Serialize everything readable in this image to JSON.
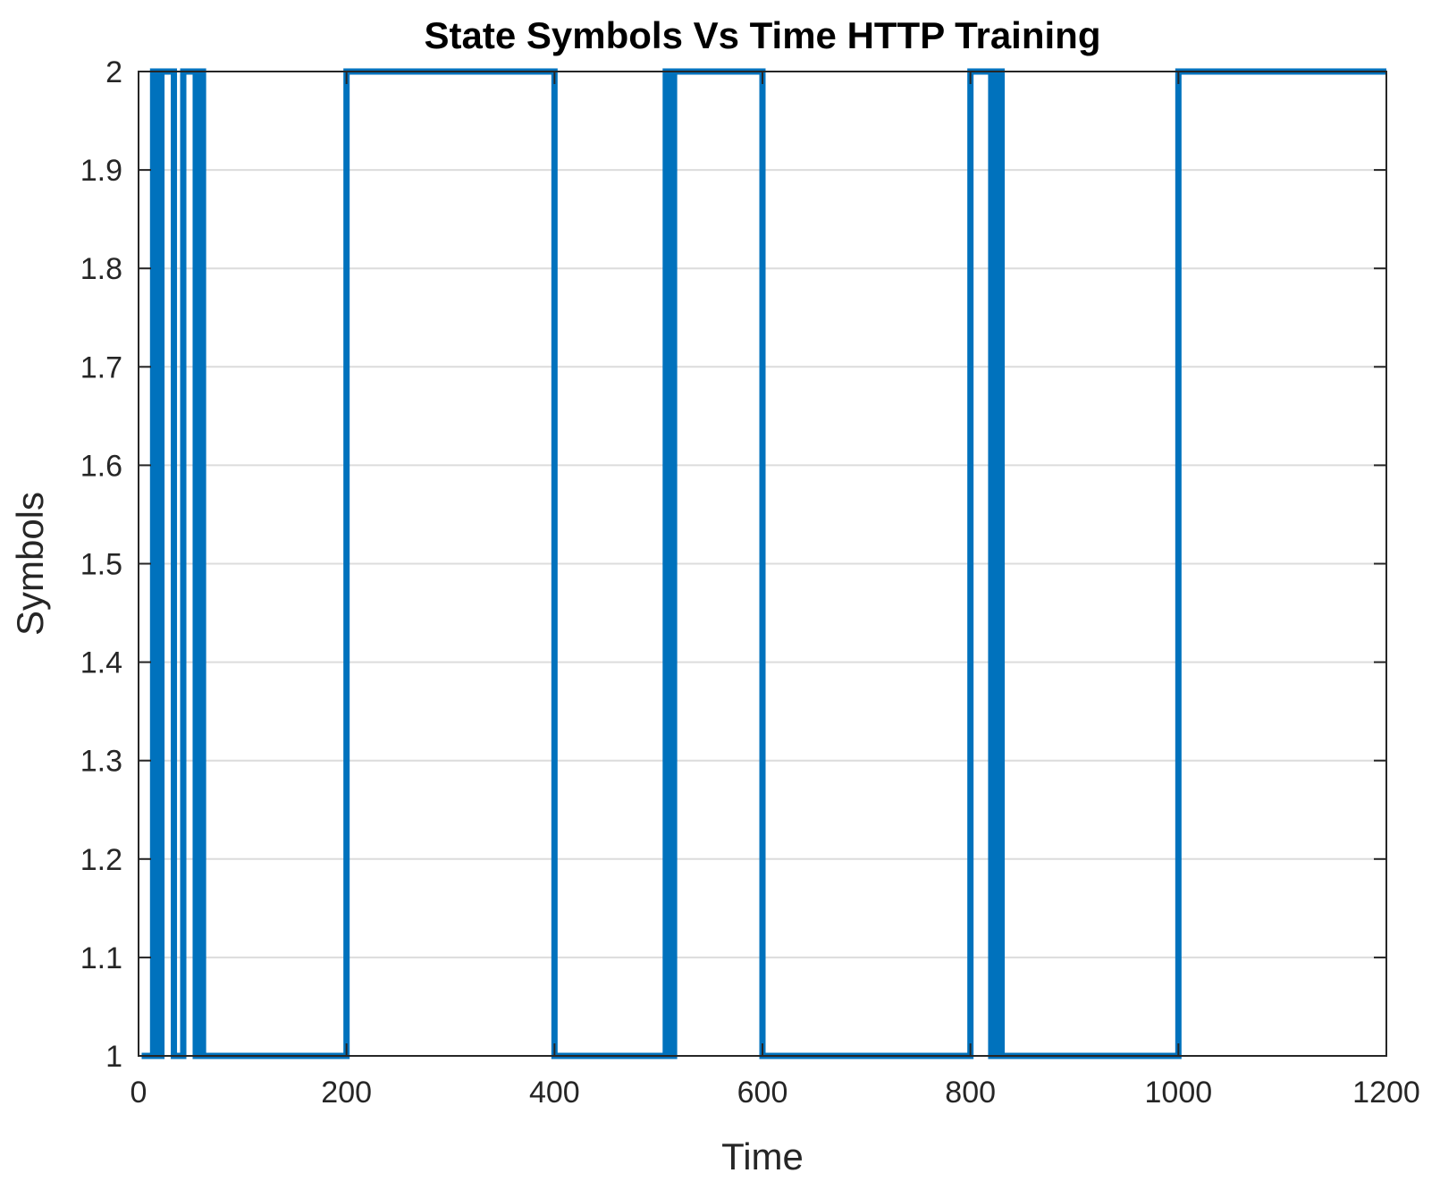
{
  "chart_data": {
    "type": "line",
    "title": "State Symbols Vs Time HTTP Training",
    "xlabel": "Time",
    "ylabel": "Symbols",
    "xlim": [
      0,
      1200
    ],
    "ylim": [
      1,
      2
    ],
    "xticks": [
      "0",
      "200",
      "400",
      "600",
      "800",
      "1000",
      "1200"
    ],
    "yticks": [
      "1",
      "1.1",
      "1.2",
      "1.3",
      "1.4",
      "1.5",
      "1.6",
      "1.7",
      "1.8",
      "1.9",
      "2"
    ],
    "grid": "horizontal",
    "line_style": "step",
    "color": "#0072BD",
    "series": [
      {
        "x": [
          3,
          14,
          14,
          18,
          18,
          22,
          22,
          34,
          34,
          43,
          43,
          55,
          55,
          58,
          58,
          62,
          62,
          200,
          200,
          400,
          400,
          507,
          507,
          509,
          509,
          511,
          511,
          513,
          513,
          515,
          515,
          600,
          600,
          800,
          800,
          820,
          820,
          825,
          825,
          830,
          830,
          1000,
          1000,
          1200
        ],
        "y": [
          1,
          1,
          2,
          2,
          1,
          1,
          2,
          2,
          1,
          1,
          2,
          2,
          1,
          1,
          2,
          2,
          1,
          1,
          2,
          2,
          1,
          1,
          2,
          2,
          1,
          1,
          2,
          2,
          1,
          1,
          2,
          2,
          1,
          1,
          2,
          2,
          1,
          1,
          2,
          2,
          1,
          1,
          2,
          2
        ]
      }
    ]
  }
}
